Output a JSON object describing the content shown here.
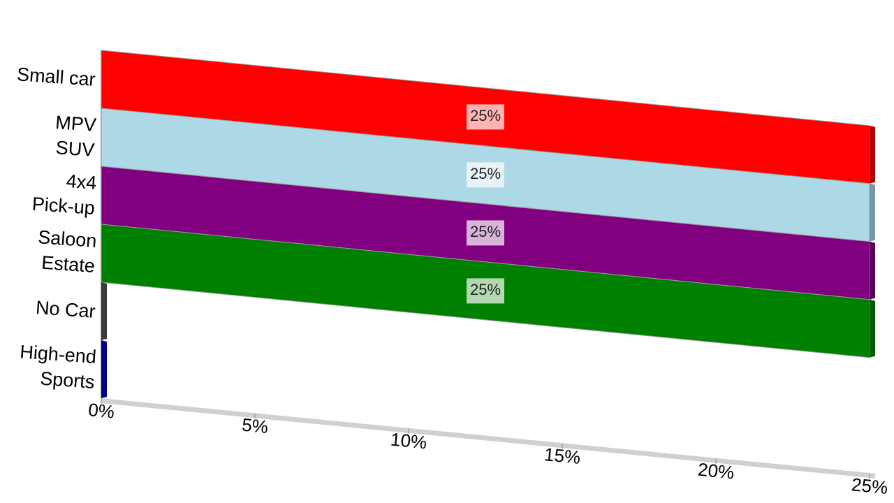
{
  "chart_data": {
    "type": "bar3d",
    "categories": [
      "Small car",
      "MPV\nSUV",
      "4x4\nPick-up",
      "Saloon\nEstate",
      "No Car",
      "High-end\nSports"
    ],
    "values": [
      25,
      25,
      25,
      25,
      0,
      0
    ],
    "value_labels": [
      "25%",
      "25%",
      "25%",
      "25%",
      null,
      null
    ],
    "colors": [
      "#ff0000",
      "#add8e6",
      "#800080",
      "#008000",
      "#555555",
      "#0000cc"
    ],
    "xlim": [
      0,
      25
    ],
    "xticks": [
      {
        "value": 0,
        "label": "0%"
      },
      {
        "value": 5,
        "label": "5%"
      },
      {
        "value": 10,
        "label": "10%"
      },
      {
        "value": 15,
        "label": "15%"
      },
      {
        "value": 20,
        "label": "20%"
      },
      {
        "value": 25,
        "label": "25%"
      }
    ]
  }
}
